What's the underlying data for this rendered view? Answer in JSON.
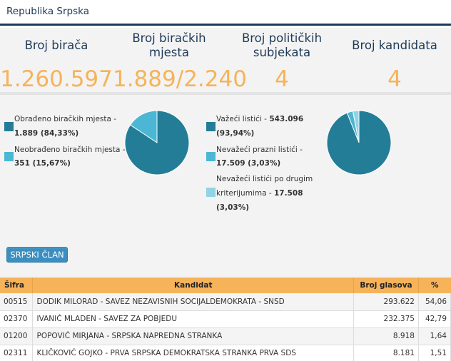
{
  "header": {
    "title": "Republika Srpska"
  },
  "stats": [
    {
      "label": "Broj birača",
      "value": "1.260.597"
    },
    {
      "label": "Broj biračkih mjesta",
      "value": "1.889/2.240"
    },
    {
      "label": "Broj političkih subjekata",
      "value": "4"
    },
    {
      "label": "Broj kandidata",
      "value": "4"
    }
  ],
  "legend_left": {
    "items": [
      {
        "text": "Obrađeno biračkih mjesta -",
        "value": "1.889 (84,33%)",
        "color": "#237d96"
      },
      {
        "text": "Neobrađeno biračkih mjesta -",
        "value": "351 (15,67%)",
        "color": "#4bb7d4"
      }
    ]
  },
  "legend_right": {
    "items": [
      {
        "text": "Važeći listići -",
        "value": "543.096",
        "value2": "(93,94%)",
        "color": "#237d96"
      },
      {
        "text": "Nevažeći prazni listići -",
        "value": "17.509 (3,03%)",
        "color": "#4bb7d4"
      },
      {
        "text": "Nevažeći listići po drugim",
        "text2": "kriterijumima -",
        "value": "17.508",
        "value2": "(3,03%)",
        "color": "#93d3e6"
      }
    ]
  },
  "chart_data": [
    {
      "type": "pie",
      "title": "",
      "slices": [
        {
          "label": "Obrađeno biračkih mjesta",
          "value": 84.33,
          "color": "#237d96"
        },
        {
          "label": "Neobrađeno biračkih mjesta",
          "value": 15.67,
          "color": "#4bb7d4"
        }
      ]
    },
    {
      "type": "pie",
      "title": "",
      "slices": [
        {
          "label": "Važeći listići",
          "value": 93.94,
          "color": "#237d96"
        },
        {
          "label": "Nevažeći prazni listići",
          "value": 3.03,
          "color": "#4bb7d4"
        },
        {
          "label": "Nevažeći listići po drugim kriterijumima",
          "value": 3.03,
          "color": "#93d3e6"
        }
      ]
    }
  ],
  "button": {
    "label": "SRPSKI ČLAN"
  },
  "table": {
    "headers": {
      "sifra": "Šifra",
      "kandidat": "Kandidat",
      "glasovi": "Broj glasova",
      "pct": "%"
    },
    "rows": [
      {
        "sifra": "00515",
        "kandidat": "DODIK MILORAD - SAVEZ NEZAVISNIH SOCIJALDEMOKRATA - SNSD",
        "glasovi": "293.622",
        "pct": "54,06"
      },
      {
        "sifra": "02370",
        "kandidat": "IVANIĆ MLADEN - SAVEZ ZA POBJEDU",
        "glasovi": "232.375",
        "pct": "42,79"
      },
      {
        "sifra": "01200",
        "kandidat": "POPOVIĆ MIRJANA - SRPSKA NAPREDNA STRANKA",
        "glasovi": "8.918",
        "pct": "1,64"
      },
      {
        "sifra": "02311",
        "kandidat": "KLIČKOVIĆ GOJKO - PRVA SRPSKA DEMOKRATSKA STRANKA PRVA SDS",
        "glasovi": "8.181",
        "pct": "1,51"
      }
    ]
  }
}
